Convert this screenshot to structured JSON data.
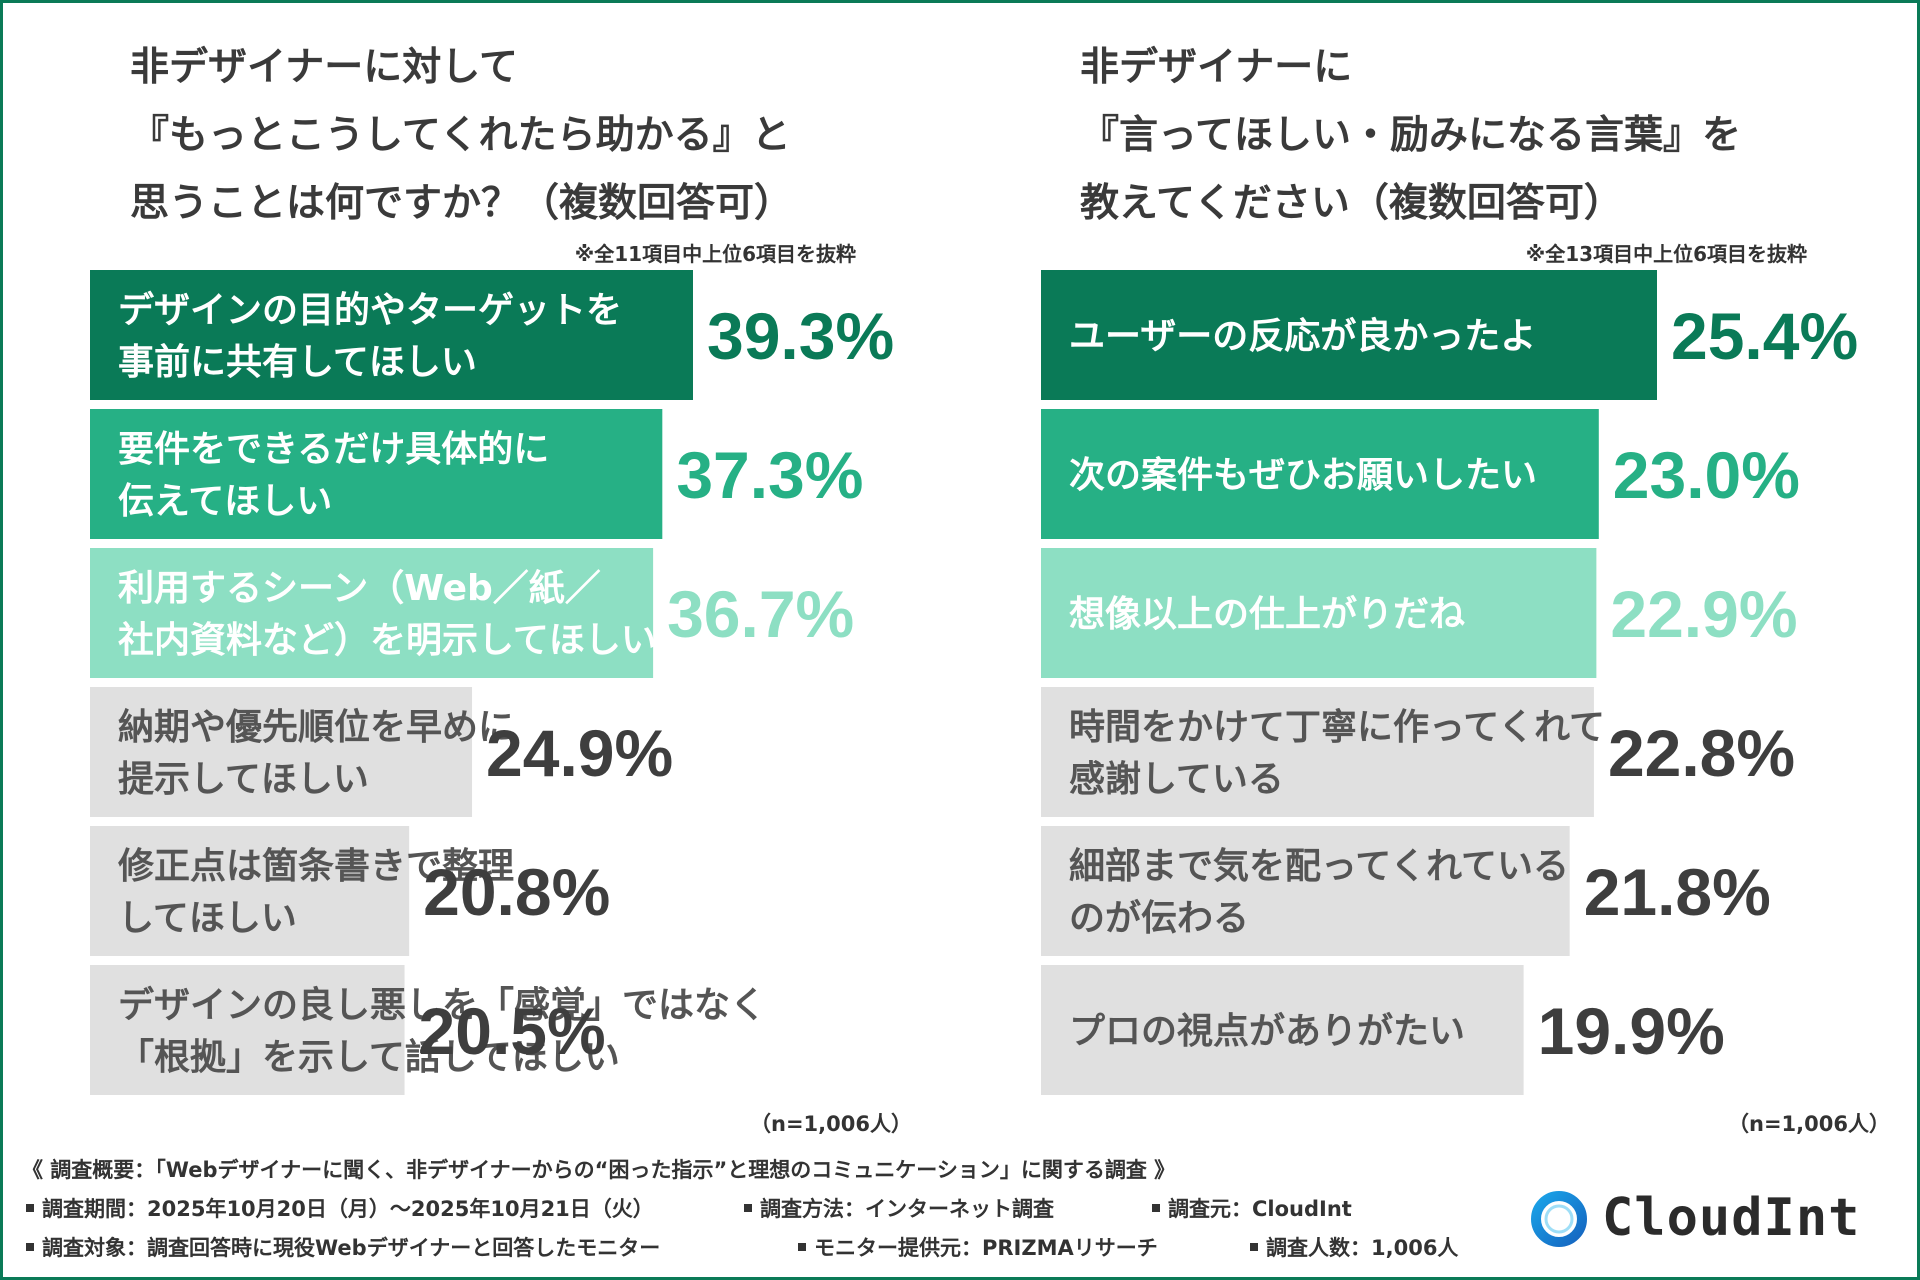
{
  "colors": {
    "frame": "#0a7a57",
    "rank1": "#0a7a57",
    "rank2": "#26b085",
    "rank3": "#8ddfc3",
    "other": "#e0e0e0",
    "labelLight": "#ffffff",
    "labelDark": "#555555",
    "valueDark": "#3e3e3e"
  },
  "left": {
    "title_lines": [
      "非デザイナーに対して",
      "『もっとこうしてくれたら助かる』と",
      "思うことは何ですか？（複数回答可）"
    ],
    "note": "※全11項目中上位6項目を抜粋",
    "n": "（n=1,006人）"
  },
  "right": {
    "title_lines": [
      "非デザイナーに",
      "『言ってほしい・励みになる言葉』を",
      "教えてください（複数回答可）"
    ],
    "note": "※全13項目中上位6項目を抜粋",
    "n": "（n=1,006人）"
  },
  "chart_data": [
    {
      "type": "bar",
      "orientation": "horizontal",
      "title": "非デザイナーに対して『もっとこうしてくれたら助かる』と思うことは何ですか？（複数回答可）",
      "unit": "%",
      "xlim": [
        0,
        39.3
      ],
      "categories": [
        [
          "デザインの目的やターゲットを",
          "事前に共有してほしい"
        ],
        [
          "要件をできるだけ具体的に",
          "伝えてほしい"
        ],
        [
          "利用するシーン（Web／紙／",
          "社内資料など）を明示してほしい"
        ],
        [
          "納期や優先順位を早めに",
          "提示してほしい"
        ],
        [
          "修正点は箇条書きで整理",
          "してほしい"
        ],
        [
          "デザインの良し悪しを「感覚」ではなく",
          "「根拠」を示して話してほしい"
        ]
      ],
      "values": [
        39.3,
        37.3,
        36.7,
        24.9,
        20.8,
        20.5
      ],
      "value_labels": [
        "39.3%",
        "37.3%",
        "36.7%",
        "24.9%",
        "20.8%",
        "20.5%"
      ]
    },
    {
      "type": "bar",
      "orientation": "horizontal",
      "title": "非デザイナーに『言ってほしい・励みになる言葉』を教えてください（複数回答可）",
      "unit": "%",
      "xlim": [
        0,
        25.4
      ],
      "categories": [
        [
          "ユーザーの反応が良かったよ"
        ],
        [
          "次の案件もぜひお願いしたい"
        ],
        [
          "想像以上の仕上がりだね"
        ],
        [
          "時間をかけて丁寧に作ってくれて",
          "感謝している"
        ],
        [
          "細部まで気を配ってくれている",
          "のが伝わる"
        ],
        [
          "プロの視点がありがたい"
        ]
      ],
      "values": [
        25.4,
        23.0,
        22.9,
        22.8,
        21.8,
        19.9
      ],
      "value_labels": [
        "25.4%",
        "23.0%",
        "22.9%",
        "22.8%",
        "21.8%",
        "19.9%"
      ]
    }
  ],
  "footer": {
    "summary": "《 調査概要：「Webデザイナーに聞く、非デザイナーからの“困った指示”と理想のコミュニケーション」に関する調査 》",
    "period": "調査期間：2025年10月20日（月）〜2025年10月21日（火）",
    "method": "調査方法：インターネット調査",
    "source": "調査元：CloudInt",
    "target": "調査対象：調査回答時に現役Webデザイナーと回答したモニター",
    "provider": "モニター提供元：PRIZMAリサーチ",
    "count": "調査人数：1,006人"
  },
  "logo": {
    "text": "CloudInt",
    "icon": "cloudint-ring-icon"
  }
}
